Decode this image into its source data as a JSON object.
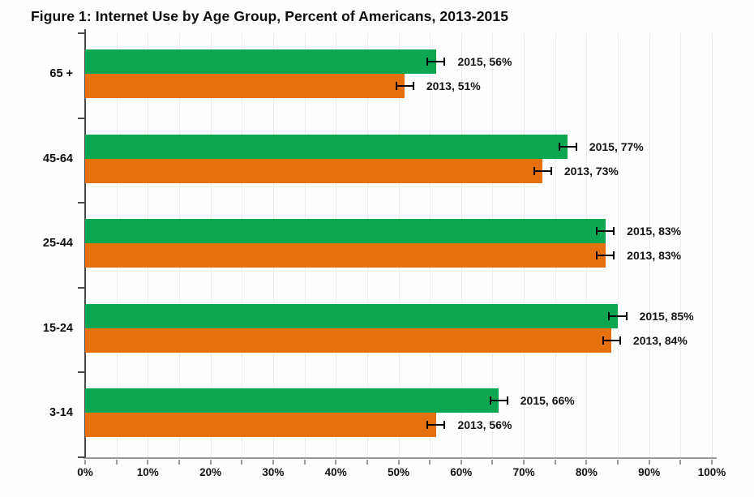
{
  "title": "Figure 1: Internet Use by Age Group, Percent of Americans, 2013-2015",
  "colors": {
    "series_2015": "#0CA750",
    "series_2013": "#E5700D",
    "axis": "#9A9A9A",
    "y_axis": "#4A4A4A",
    "gridline": "#ECECEC",
    "error_bar": "#000000",
    "text": "#0D0D0D"
  },
  "chart_data": {
    "type": "bar",
    "orientation": "horizontal",
    "title": "Figure 1: Internet Use by Age Group, Percent of Americans, 2013-2015",
    "categories": [
      "65 +",
      "45-64",
      "25-44",
      "15-24",
      "3-14"
    ],
    "series": [
      {
        "name": "2015",
        "color": "#0CA750",
        "values": [
          56,
          77,
          83,
          85,
          66
        ],
        "point_labels": [
          "2015, 56%",
          "2015, 77%",
          "2015, 83%",
          "2015, 85%",
          "2015, 66%"
        ]
      },
      {
        "name": "2013",
        "color": "#E5700D",
        "values": [
          51,
          73,
          83,
          84,
          56
        ],
        "point_labels": [
          "2013, 51%",
          "2013, 73%",
          "2013, 83%",
          "2013, 84%",
          "2013, 56%"
        ]
      }
    ],
    "error_halfwidth_pct": 1.5,
    "xlim": [
      0,
      100
    ],
    "x_tick_labels": [
      "0%",
      "10%",
      "20%",
      "30%",
      "40%",
      "50%",
      "60%",
      "70%",
      "80%",
      "90%",
      "100%"
    ],
    "minor_tick_step_pct": 5,
    "grid": "vertical minor gridlines every 5%",
    "legend": "none (values labeled at bar ends)",
    "xlabel": "",
    "ylabel": ""
  }
}
